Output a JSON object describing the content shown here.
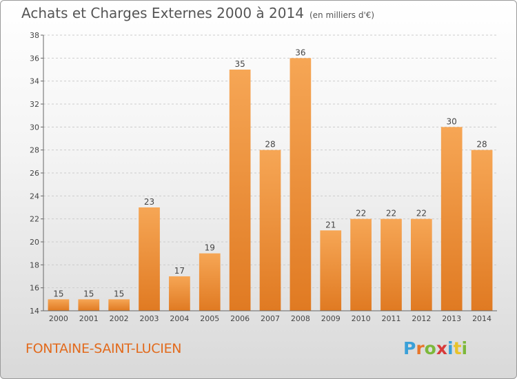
{
  "header": {
    "title": "Achats et Charges Externes 2000 à 2014",
    "subtitle": "(en milliers d'€)"
  },
  "footer": {
    "commune": "FONTAINE-SAINT-LUCIEN",
    "logo_letters": [
      "P",
      "r",
      "o",
      "x",
      "i",
      "t",
      "i"
    ],
    "logo_colors": [
      "#3aa0d8",
      "#e8762a",
      "#7cb83a",
      "#d83a3a",
      "#3aa0d8",
      "#e8c22a",
      "#7cb83a"
    ]
  },
  "colors": {
    "bar_top": "#f6a655",
    "bar_bottom": "#e07a22",
    "grid": "#cccccc"
  },
  "chart_data": {
    "type": "bar",
    "title": "Achats et Charges Externes 2000 à 2014",
    "subtitle": "(en milliers d'€)",
    "categories": [
      "2000",
      "2001",
      "2002",
      "2003",
      "2004",
      "2005",
      "2006",
      "2007",
      "2008",
      "2009",
      "2010",
      "2011",
      "2012",
      "2013",
      "2014"
    ],
    "values": [
      15,
      15,
      15,
      23,
      17,
      19,
      35,
      28,
      36,
      21,
      22,
      22,
      22,
      30,
      28
    ],
    "ylim": [
      14,
      38
    ],
    "yticks": [
      14,
      16,
      18,
      20,
      22,
      24,
      26,
      28,
      30,
      32,
      34,
      36,
      38
    ],
    "grid": true,
    "data_labels": true
  }
}
